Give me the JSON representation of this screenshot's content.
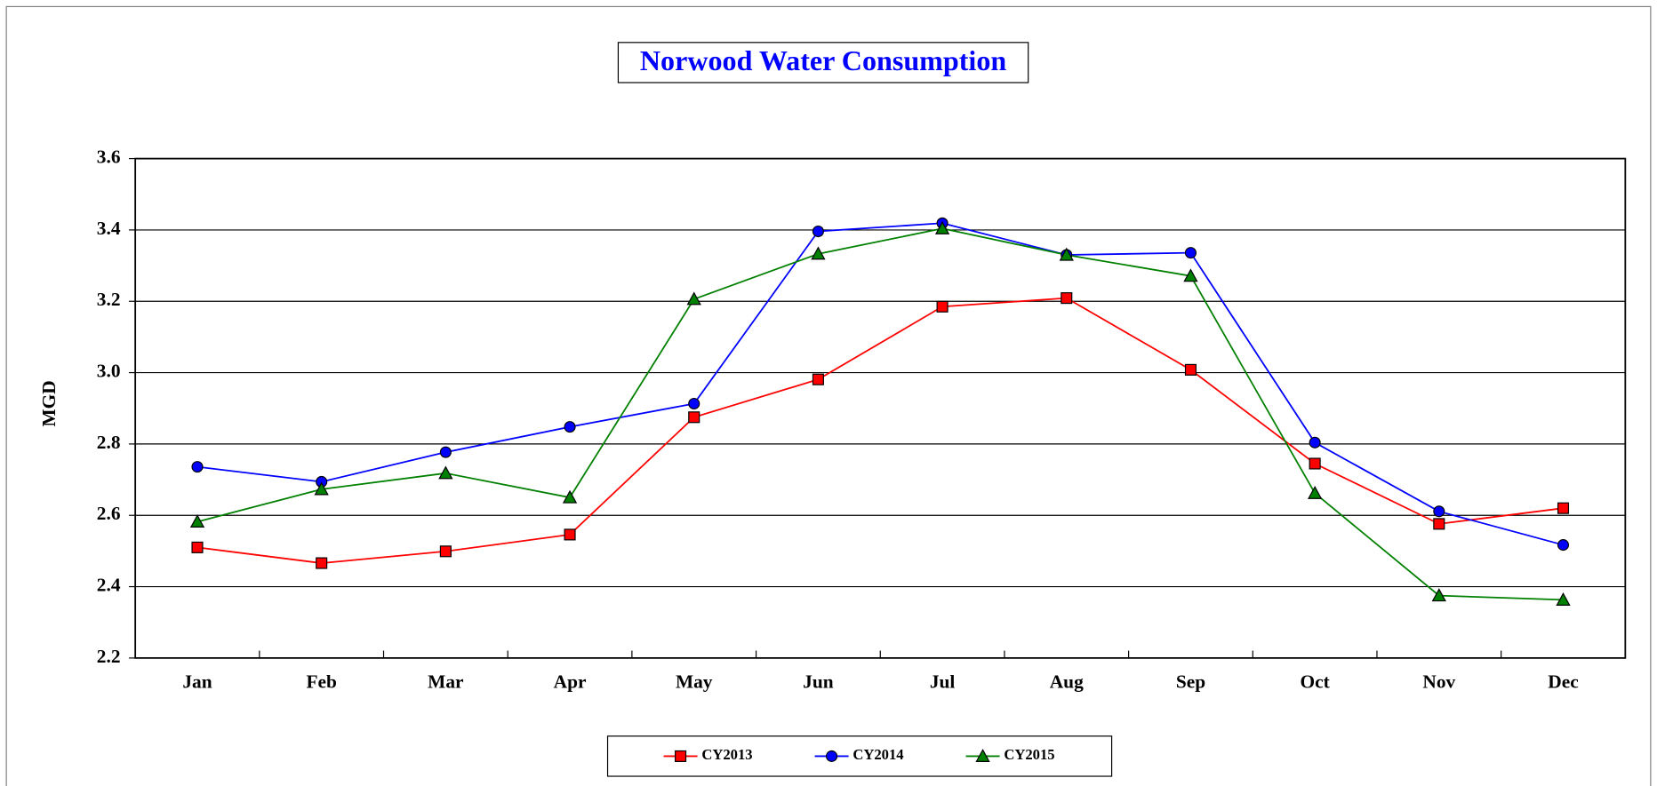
{
  "chart_data": {
    "type": "line",
    "title": "Norwood Water Consumption",
    "y_label": "MGD",
    "categories": [
      "Jan",
      "Feb",
      "Mar",
      "Apr",
      "May",
      "Jun",
      "Jul",
      "Aug",
      "Sep",
      "Oct",
      "Nov",
      "Dec"
    ],
    "series": [
      {
        "name": "CY2013",
        "color": "#ff0000",
        "marker": "square",
        "values": [
          2.51,
          2.466,
          2.499,
          2.546,
          2.875,
          2.981,
          3.185,
          3.209,
          3.008,
          2.745,
          2.576,
          2.62
        ]
      },
      {
        "name": "CY2014",
        "color": "#0000ff",
        "marker": "circle",
        "values": [
          2.736,
          2.694,
          2.777,
          2.848,
          2.913,
          3.396,
          3.419,
          3.33,
          3.336,
          2.804,
          2.611,
          2.517
        ]
      },
      {
        "name": "CY2015",
        "color": "#008000",
        "marker": "triangle",
        "values": [
          2.582,
          2.673,
          2.718,
          2.65,
          3.206,
          3.333,
          3.404,
          3.33,
          3.271,
          2.662,
          2.375,
          2.363
        ]
      }
    ],
    "ylim": [
      2.2,
      3.6
    ],
    "yticks": [
      2.2,
      2.4,
      2.6,
      2.8,
      {
        "value": 3,
        "label": "3.0"
      },
      3.2,
      3.4,
      3.6
    ],
    "grid": true,
    "legend": "bottom"
  }
}
